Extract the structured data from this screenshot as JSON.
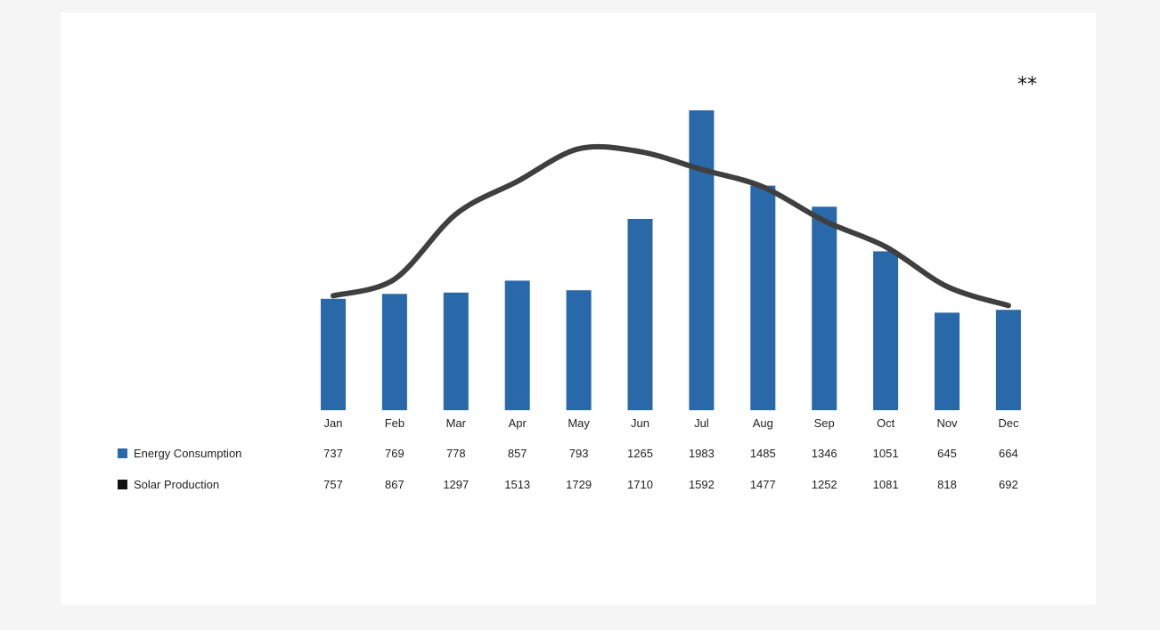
{
  "chart_data": {
    "type": "bar",
    "footnote_marker": "**",
    "categories": [
      "Jan",
      "Feb",
      "Mar",
      "Apr",
      "May",
      "Jun",
      "Jul",
      "Aug",
      "Sep",
      "Oct",
      "Nov",
      "Dec"
    ],
    "series": [
      {
        "name": "Energy Consumption",
        "type": "bar",
        "color": "#2968a9",
        "values": [
          737,
          769,
          778,
          857,
          793,
          1265,
          1983,
          1485,
          1346,
          1051,
          645,
          664
        ]
      },
      {
        "name": "Solar Production",
        "type": "line",
        "color": "#3f3f3f",
        "legend_color": "#111111",
        "values": [
          757,
          867,
          1297,
          1513,
          1729,
          1710,
          1592,
          1477,
          1252,
          1081,
          818,
          692
        ]
      }
    ],
    "ylim": [
      0,
      2000
    ],
    "grid": false,
    "legend": "data table"
  }
}
